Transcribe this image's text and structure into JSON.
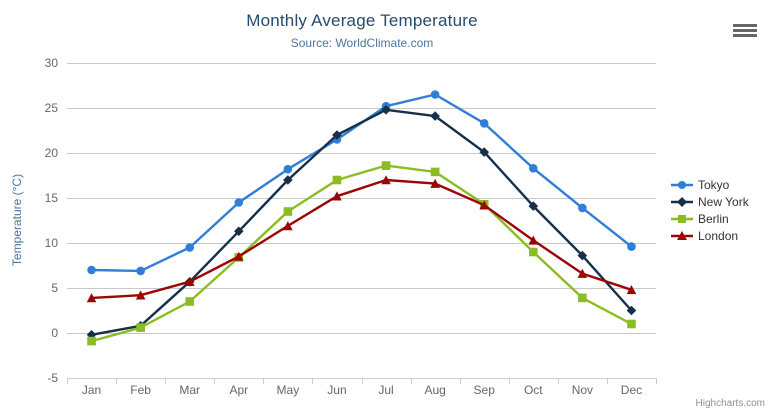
{
  "icons": {
    "export_menu": "hamburger-icon"
  },
  "credits": {
    "label": "Highcharts.com"
  },
  "chart_data": {
    "type": "line",
    "title": "Monthly Average Temperature",
    "subtitle": "Source: WorldClimate.com",
    "xlabel": "",
    "ylabel": "Temperature (°C)",
    "ylim": [
      -5,
      30
    ],
    "yticks": [
      -5,
      0,
      5,
      10,
      15,
      20,
      25,
      30
    ],
    "grid": true,
    "legend_position": "right",
    "categories": [
      "Jan",
      "Feb",
      "Mar",
      "Apr",
      "May",
      "Jun",
      "Jul",
      "Aug",
      "Sep",
      "Oct",
      "Nov",
      "Dec"
    ],
    "series": [
      {
        "name": "Tokyo",
        "color": "#2f7ed8",
        "marker": "circle",
        "values": [
          7.0,
          6.9,
          9.5,
          14.5,
          18.2,
          21.5,
          25.2,
          26.5,
          23.3,
          18.3,
          13.9,
          9.6
        ]
      },
      {
        "name": "New York",
        "color": "#16304a",
        "marker": "diamond",
        "values": [
          -0.2,
          0.8,
          5.7,
          11.3,
          17.0,
          22.0,
          24.8,
          24.1,
          20.1,
          14.1,
          8.6,
          2.5
        ]
      },
      {
        "name": "Berlin",
        "color": "#8bbc21",
        "marker": "square",
        "values": [
          -0.9,
          0.6,
          3.5,
          8.4,
          13.5,
          17.0,
          18.6,
          17.9,
          14.3,
          9.0,
          3.9,
          1.0
        ]
      },
      {
        "name": "London",
        "color": "#9c0505",
        "marker": "triangle",
        "values": [
          3.9,
          4.2,
          5.7,
          8.5,
          11.9,
          15.2,
          17.0,
          16.6,
          14.2,
          10.3,
          6.6,
          4.8
        ]
      }
    ],
    "style": {
      "grid_color": "#c8c8c8",
      "axis_line_color": "#c0d0e0",
      "label_color": "#666666"
    }
  }
}
